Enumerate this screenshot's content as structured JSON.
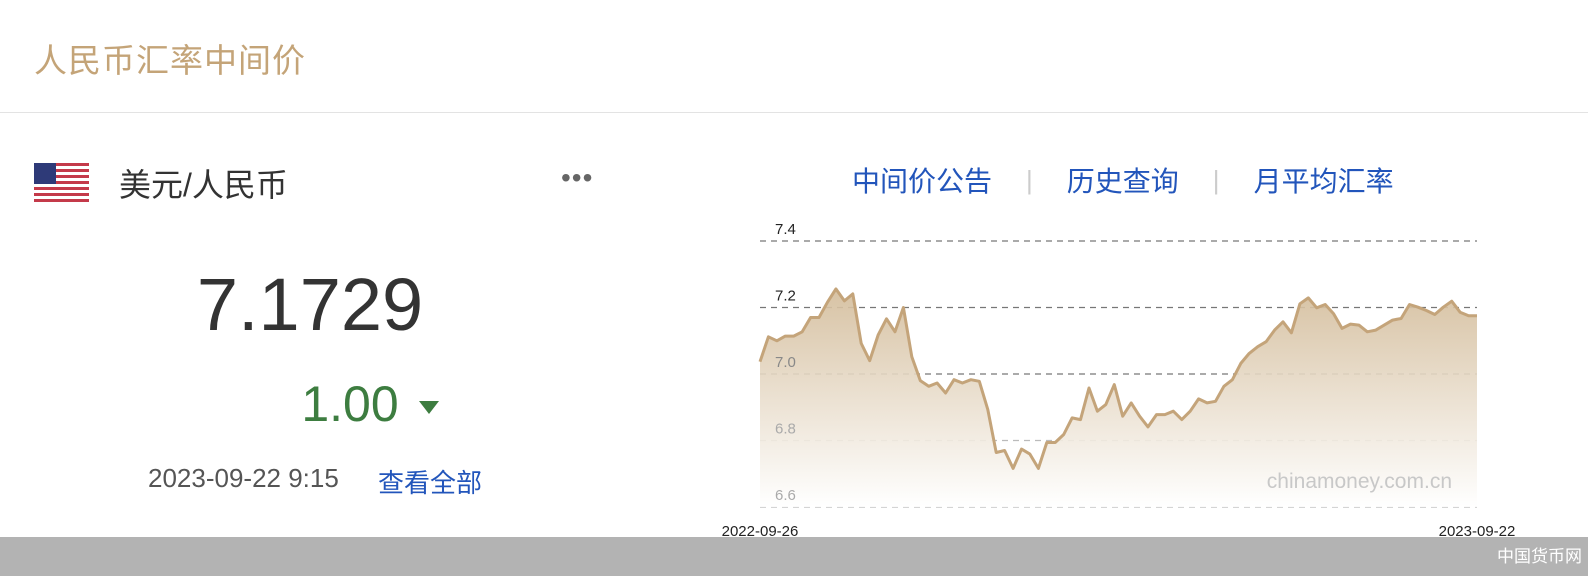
{
  "header": {
    "title": "人民币汇率中间价"
  },
  "currency": {
    "flag_icon": "us-flag-icon",
    "pair": "美元/人民币",
    "more_label": "•••",
    "rate": "7.1729",
    "change": "1.00",
    "change_direction": "down",
    "change_color": "#3d7d40",
    "timestamp": "2023-09-22 9:15",
    "view_all": "查看全部"
  },
  "links": [
    {
      "label": "中间价公告"
    },
    {
      "label": "历史查询"
    },
    {
      "label": "月平均汇率"
    }
  ],
  "separator": "|",
  "chart_data": {
    "type": "area",
    "x_start": "2022-09-26",
    "x_end": "2023-09-22",
    "x_tick_labels": [
      "2022-09-26",
      "2023-09-22"
    ],
    "y_tick_labels": [
      "7.4",
      "7.2",
      "7.0",
      "6.8",
      "6.6"
    ],
    "y_ticks": [
      7.4,
      7.2,
      7.0,
      6.8,
      6.6
    ],
    "ylim": [
      6.6,
      7.4
    ],
    "grid": true,
    "line_color": "#c4a47a",
    "watermark": "chinamoney.com.cn",
    "values": [
      7.037,
      7.112,
      7.1,
      7.114,
      7.114,
      7.127,
      7.17,
      7.17,
      7.216,
      7.256,
      7.22,
      7.241,
      7.092,
      7.04,
      7.117,
      7.166,
      7.127,
      7.2,
      7.052,
      6.98,
      6.963,
      6.973,
      6.943,
      6.983,
      6.973,
      6.983,
      6.978,
      6.893,
      6.764,
      6.77,
      6.716,
      6.774,
      6.759,
      6.716,
      6.794,
      6.794,
      6.818,
      6.868,
      6.863,
      6.958,
      6.888,
      6.908,
      6.968,
      6.873,
      6.913,
      6.873,
      6.841,
      6.878,
      6.878,
      6.888,
      6.863,
      6.888,
      6.925,
      6.913,
      6.918,
      6.963,
      6.983,
      7.032,
      7.062,
      7.082,
      7.097,
      7.132,
      7.157,
      7.124,
      7.211,
      7.229,
      7.199,
      7.209,
      7.181,
      7.137,
      7.15,
      7.147,
      7.127,
      7.132,
      7.147,
      7.162,
      7.167,
      7.209,
      7.201,
      7.191,
      7.179,
      7.201,
      7.219,
      7.186,
      7.175,
      7.175
    ]
  },
  "footer": {
    "brand": "中国货币网"
  }
}
